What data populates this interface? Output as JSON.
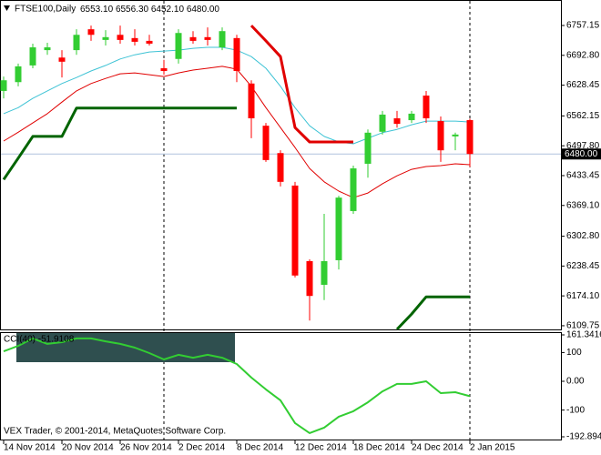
{
  "chart_data": [
    {
      "type": "candlestick",
      "title": "FTSE100,Daily",
      "header_values": [
        "6553.10",
        "6556.30",
        "6452.10",
        "6480.00"
      ],
      "categories": [
        "14 Nov 2014",
        null,
        null,
        null,
        "20 Nov 2014",
        null,
        null,
        null,
        "26 Nov 2014",
        null,
        null,
        null,
        "2 Dec 2014",
        null,
        null,
        null,
        "8 Dec 2014",
        null,
        null,
        null,
        "12 Dec 2014",
        null,
        null,
        null,
        "18 Dec 2014",
        null,
        null,
        null,
        "24 Dec 2014",
        null,
        null,
        null,
        "2 Jan 2015"
      ],
      "open": [
        6616,
        6635,
        6671,
        6704,
        6688,
        6704,
        6749,
        6726,
        6737,
        6730,
        6724,
        6665,
        6685,
        6732,
        6732,
        6710,
        6730,
        6632,
        6541,
        6482,
        6412,
        6249,
        6198,
        6251,
        6357,
        6459,
        6528,
        6557,
        6553,
        6606,
        6551,
        6518,
        6553.1
      ],
      "high": [
        6647,
        6675,
        6718,
        6720,
        6704,
        6749,
        6757,
        6747,
        6757,
        6749,
        6737,
        6683,
        6749,
        6745,
        6753,
        6753,
        6737,
        6639,
        6547,
        6488,
        6420,
        6253,
        6351,
        6390,
        6455,
        6533,
        6573,
        6573,
        6573,
        6616,
        6561,
        6526,
        6556.3
      ],
      "low": [
        6600,
        6626,
        6665,
        6694,
        6645,
        6694,
        6724,
        6714,
        6718,
        6714,
        6714,
        6651,
        6675,
        6718,
        6714,
        6704,
        6635,
        6514,
        6463,
        6410,
        6214,
        6121,
        6165,
        6231,
        6351,
        6429,
        6522,
        6537,
        6547,
        6547,
        6463,
        6488,
        6452.1
      ],
      "close": [
        6639,
        6669,
        6710,
        6710,
        6679,
        6737,
        6737,
        6732,
        6726,
        6722,
        6718,
        6659,
        6741,
        6724,
        6726,
        6745,
        6659,
        6557,
        6467,
        6420,
        6218,
        6174,
        6249,
        6386,
        6449,
        6526,
        6565,
        6545,
        6567,
        6557,
        6488,
        6522,
        6480
      ],
      "up_color": "#32cd32",
      "down_color": "#ff0000",
      "series": [
        {
          "color": "#3ec3d5",
          "line_width": 1,
          "values": [
            6567,
            6580,
            6600,
            6616,
            6632,
            6645,
            6659,
            6671,
            6685,
            6694,
            6700,
            6702,
            6704,
            6708,
            6710,
            6710,
            6704,
            6690,
            6665,
            6626,
            6580,
            6541,
            6518,
            6506,
            6502,
            6514,
            6526,
            6533,
            6543,
            6551,
            6551,
            6551,
            6549
          ]
        },
        {
          "color": "#e00000",
          "line_width": 1,
          "values": [
            6508,
            6527,
            6547,
            6567,
            6592,
            6616,
            6632,
            6643,
            6653,
            6655,
            6651,
            6647,
            6655,
            6661,
            6665,
            6669,
            6663,
            6626,
            6580,
            6537,
            6494,
            6449,
            6420,
            6400,
            6386,
            6396,
            6416,
            6433,
            6447,
            6453,
            6455,
            6459,
            6457
          ]
        },
        {
          "color": "#006400",
          "line_width": 3,
          "values": [
            6425,
            6471,
            6518,
            6518,
            6518,
            6579,
            6579,
            6579,
            6579,
            6579,
            6579,
            6579,
            6579,
            6579,
            6579,
            6579,
            6579,
            null,
            null,
            null,
            null,
            null,
            null,
            null,
            null,
            null,
            null,
            6102,
            6135,
            6172,
            6172,
            6172,
            6172
          ]
        },
        {
          "color": "#e00000",
          "line_width": 3,
          "values": [
            null,
            null,
            null,
            null,
            null,
            null,
            null,
            null,
            null,
            null,
            null,
            null,
            null,
            null,
            null,
            null,
            null,
            6757,
            6724,
            6690,
            6537,
            6506,
            6506,
            6506,
            6506,
            null,
            null,
            null,
            null,
            null,
            null,
            null,
            null
          ]
        }
      ],
      "ylim": [
        6101.8,
        6812.1
      ],
      "yticks": [
        6757.15,
        {
          "value": 6692.8,
          "label": "6692.80"
        },
        6628.45,
        6562.15,
        {
          "value": 6497.8,
          "label": "6497.80"
        },
        6433.45,
        {
          "value": 6369.1,
          "label": "6369.10"
        },
        {
          "value": 6302.8,
          "label": "6302.80"
        },
        6238.45,
        {
          "value": 6174.1,
          "label": "6174.10"
        },
        6109.75
      ],
      "last_price": {
        "value": 6480,
        "label": "6480.00"
      }
    },
    {
      "type": "line",
      "title": "CCI(40) -51.9108",
      "series": [
        {
          "color": "#32cd32",
          "line_width": 2,
          "values": [
            104,
            123,
            149,
            130,
            136,
            149,
            149,
            139,
            130,
            117,
            98,
            76,
            92,
            82,
            92,
            82,
            60,
            13,
            -28,
            -66,
            -145,
            -180,
            -161,
            -123,
            -104,
            -73,
            -35,
            -9,
            -9,
            0,
            -41,
            -38,
            -51.9
          ]
        }
      ],
      "ylim": [
        -192.8944,
        161.3416
      ],
      "yticks": [
        161.3416,
        100,
        {
          "value": 0,
          "label": "0.00"
        },
        -100,
        -192.8944
      ]
    }
  ],
  "footer": "VEX Trader, © 2001-2014, MetaQuotes Software Corp."
}
